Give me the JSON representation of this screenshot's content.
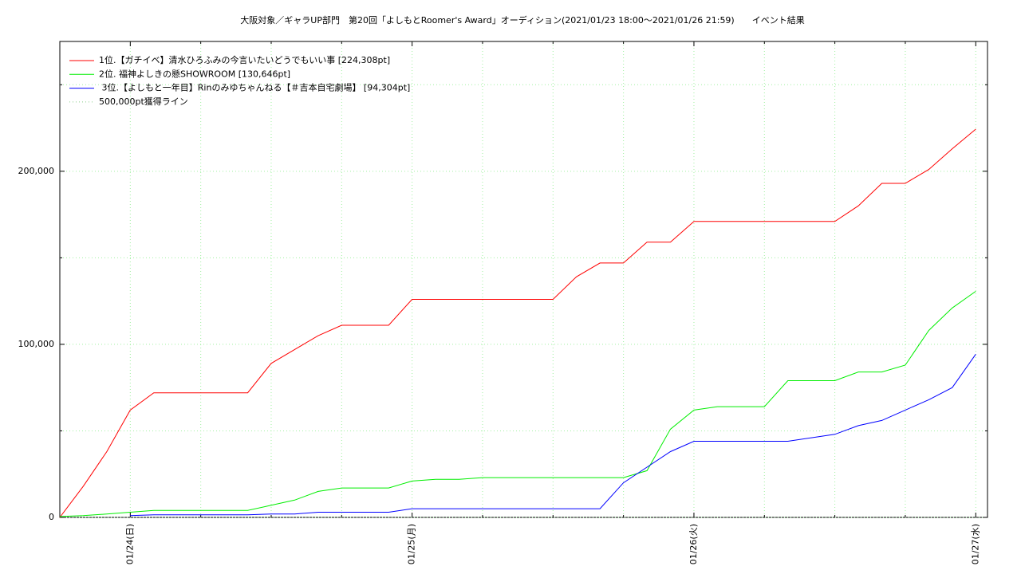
{
  "chart_data": {
    "type": "line",
    "title": "大阪対象／ギャラUP部門　第20回「よしもとRoomer's Award」オーディション(2021/01/23 18:00〜2021/01/26 21:59)　　イベント結果",
    "x": [
      "01/23 18:00",
      "01/23 20:00",
      "01/23 22:00",
      "01/24 00:00",
      "01/24 02:00",
      "01/24 04:00",
      "01/24 06:00",
      "01/24 08:00",
      "01/24 10:00",
      "01/24 12:00",
      "01/24 14:00",
      "01/24 16:00",
      "01/24 18:00",
      "01/24 20:00",
      "01/24 22:00",
      "01/25 00:00",
      "01/25 02:00",
      "01/25 04:00",
      "01/25 06:00",
      "01/25 08:00",
      "01/25 10:00",
      "01/25 12:00",
      "01/25 14:00",
      "01/25 16:00",
      "01/25 18:00",
      "01/25 20:00",
      "01/25 22:00",
      "01/26 00:00",
      "01/26 02:00",
      "01/26 04:00",
      "01/26 06:00",
      "01/26 08:00",
      "01/26 10:00",
      "01/26 12:00",
      "01/26 14:00",
      "01/26 16:00",
      "01/26 18:00",
      "01/26 20:00",
      "01/26 22:00",
      "01/27 00:00"
    ],
    "series": [
      {
        "name": "1位.【ガチイベ】清水ひろふみの今言いたいどうでもいい事 [224,308pt]",
        "color": "#ff0000",
        "values": [
          0,
          18000,
          38000,
          62000,
          72000,
          72000,
          72000,
          72000,
          72000,
          89000,
          97000,
          105000,
          111000,
          111000,
          111000,
          126000,
          126000,
          126000,
          126000,
          126000,
          126000,
          126000,
          139000,
          147000,
          147000,
          159000,
          159000,
          171000,
          171000,
          171000,
          171000,
          171000,
          171000,
          171000,
          180000,
          193000,
          193000,
          201000,
          213000,
          224308
        ]
      },
      {
        "name": "2位. 福神よしきの懸SHOWROOM [130,646pt]",
        "color": "#00ee00",
        "values": [
          500,
          1000,
          2000,
          3000,
          4000,
          4000,
          4000,
          4000,
          4000,
          7000,
          10000,
          15000,
          17000,
          17000,
          17000,
          21000,
          22000,
          22000,
          23000,
          23000,
          23000,
          23000,
          23000,
          23000,
          23000,
          27000,
          51000,
          62000,
          64000,
          64000,
          64000,
          79000,
          79000,
          79000,
          84000,
          84000,
          88000,
          108000,
          121000,
          130646
        ]
      },
      {
        "name": " 3位.【よしもと一年目】Rinのみゆちゃんねる【＃吉本自宅劇場】 [94,304pt]",
        "color": "#0000ff",
        "values": [
          null,
          null,
          null,
          1000,
          1500,
          1500,
          1500,
          1500,
          1500,
          2000,
          2000,
          3000,
          3000,
          3000,
          3000,
          5000,
          5000,
          5000,
          5000,
          5000,
          5000,
          5000,
          5000,
          5000,
          20000,
          29000,
          38000,
          44000,
          44000,
          44000,
          44000,
          44000,
          46000,
          48000,
          53000,
          56000,
          62000,
          68000,
          75000,
          94304
        ]
      },
      {
        "name": "500,000pt獲得ライン",
        "color": "#88cc88",
        "style": "dotted"
      }
    ],
    "xlim": [
      "01/23 18:00",
      "01/27 01:00"
    ],
    "xticks": [
      {
        "value": "01/24 00:00",
        "label": "01/24(日)"
      },
      {
        "value": "01/25 00:00",
        "label": "01/25(月)"
      },
      {
        "value": "01/26 00:00",
        "label": "01/26(火)"
      },
      {
        "value": "01/27 00:00",
        "label": "01/27(水)"
      }
    ],
    "xminorticks": [
      "01/24 06:00",
      "01/24 12:00",
      "01/24 18:00",
      "01/25 06:00",
      "01/25 12:00",
      "01/25 18:00",
      "01/26 06:00",
      "01/26 12:00",
      "01/26 18:00"
    ],
    "ylim": [
      0,
      275000
    ],
    "yticks": [
      {
        "value": 0,
        "label": "0"
      },
      {
        "value": 100000,
        "label": "100,000"
      },
      {
        "value": 200000,
        "label": "200,000"
      }
    ],
    "yminorticks": [
      50000,
      150000,
      250000
    ],
    "grid": true,
    "legend": "top-left"
  }
}
